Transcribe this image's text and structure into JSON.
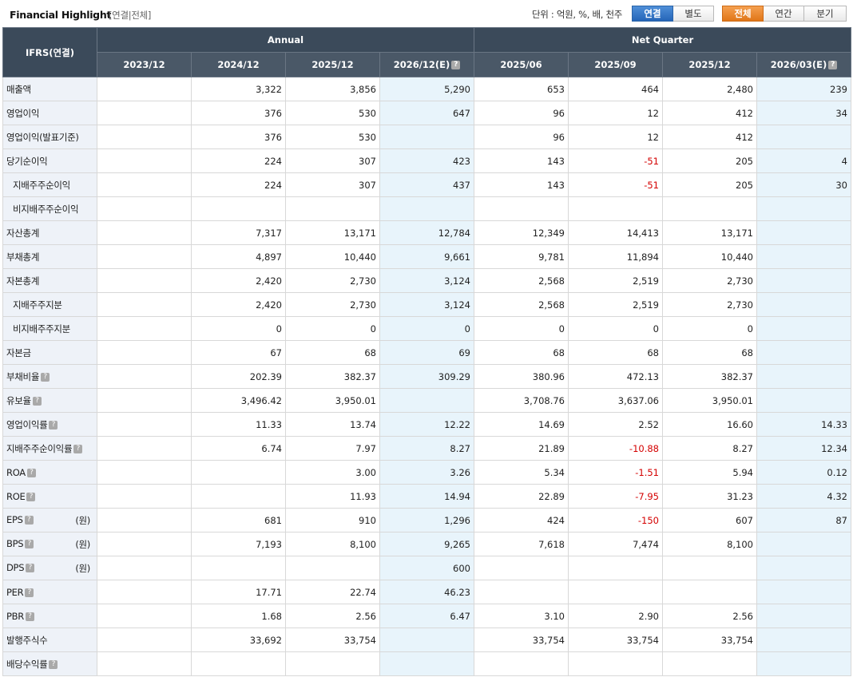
{
  "header": {
    "title": "Financial Highlight",
    "subtitle": "[연결|전체]",
    "unit_label": "단위 : 억원, %, 배, 천주",
    "scope_buttons": [
      "연결",
      "별도"
    ],
    "period_buttons": [
      "전체",
      "연간",
      "분기"
    ]
  },
  "table": {
    "corner": "IFRS(연결)",
    "groups": [
      "Annual",
      "Net Quarter"
    ],
    "periods": [
      "2023/12",
      "2024/12",
      "2025/12",
      "2026/12(E)",
      "2025/06",
      "2025/09",
      "2025/12",
      "2026/03(E)"
    ],
    "rows": [
      {
        "label": "매출액",
        "indent": false,
        "help": false,
        "unit": "",
        "values": [
          "",
          "3,322",
          "3,856",
          "5,290",
          "653",
          "464",
          "2,480",
          "239"
        ]
      },
      {
        "label": "영업이익",
        "indent": false,
        "help": false,
        "unit": "",
        "values": [
          "",
          "376",
          "530",
          "647",
          "96",
          "12",
          "412",
          "34"
        ]
      },
      {
        "label": "영업이익(발표기준)",
        "indent": false,
        "help": false,
        "unit": "",
        "values": [
          "",
          "376",
          "530",
          "",
          "96",
          "12",
          "412",
          ""
        ]
      },
      {
        "label": "당기순이익",
        "indent": false,
        "help": false,
        "unit": "",
        "values": [
          "",
          "224",
          "307",
          "423",
          "143",
          "-51",
          "205",
          "4"
        ]
      },
      {
        "label": "지배주주순이익",
        "indent": true,
        "help": false,
        "unit": "",
        "values": [
          "",
          "224",
          "307",
          "437",
          "143",
          "-51",
          "205",
          "30"
        ]
      },
      {
        "label": "비지배주주순이익",
        "indent": true,
        "help": false,
        "unit": "",
        "values": [
          "",
          "",
          "",
          "",
          "",
          "",
          "",
          ""
        ]
      },
      {
        "label": "자산총계",
        "indent": false,
        "help": false,
        "unit": "",
        "values": [
          "",
          "7,317",
          "13,171",
          "12,784",
          "12,349",
          "14,413",
          "13,171",
          ""
        ]
      },
      {
        "label": "부채총계",
        "indent": false,
        "help": false,
        "unit": "",
        "values": [
          "",
          "4,897",
          "10,440",
          "9,661",
          "9,781",
          "11,894",
          "10,440",
          ""
        ]
      },
      {
        "label": "자본총계",
        "indent": false,
        "help": false,
        "unit": "",
        "values": [
          "",
          "2,420",
          "2,730",
          "3,124",
          "2,568",
          "2,519",
          "2,730",
          ""
        ]
      },
      {
        "label": "지배주주지분",
        "indent": true,
        "help": false,
        "unit": "",
        "values": [
          "",
          "2,420",
          "2,730",
          "3,124",
          "2,568",
          "2,519",
          "2,730",
          ""
        ]
      },
      {
        "label": "비지배주주지분",
        "indent": true,
        "help": false,
        "unit": "",
        "values": [
          "",
          "0",
          "0",
          "0",
          "0",
          "0",
          "0",
          ""
        ]
      },
      {
        "label": "자본금",
        "indent": false,
        "help": false,
        "unit": "",
        "values": [
          "",
          "67",
          "68",
          "69",
          "68",
          "68",
          "68",
          ""
        ]
      },
      {
        "label": "부채비율",
        "indent": false,
        "help": true,
        "unit": "",
        "values": [
          "",
          "202.39",
          "382.37",
          "309.29",
          "380.96",
          "472.13",
          "382.37",
          ""
        ]
      },
      {
        "label": "유보율",
        "indent": false,
        "help": true,
        "unit": "",
        "values": [
          "",
          "3,496.42",
          "3,950.01",
          "",
          "3,708.76",
          "3,637.06",
          "3,950.01",
          ""
        ]
      },
      {
        "label": "영업이익률",
        "indent": false,
        "help": true,
        "unit": "",
        "values": [
          "",
          "11.33",
          "13.74",
          "12.22",
          "14.69",
          "2.52",
          "16.60",
          "14.33"
        ]
      },
      {
        "label": "지배주주순이익률",
        "indent": false,
        "help": true,
        "unit": "",
        "values": [
          "",
          "6.74",
          "7.97",
          "8.27",
          "21.89",
          "-10.88",
          "8.27",
          "12.34"
        ]
      },
      {
        "label": "ROA",
        "indent": false,
        "help": true,
        "unit": "",
        "values": [
          "",
          "",
          "3.00",
          "3.26",
          "5.34",
          "-1.51",
          "5.94",
          "0.12"
        ]
      },
      {
        "label": "ROE",
        "indent": false,
        "help": true,
        "unit": "",
        "values": [
          "",
          "",
          "11.93",
          "14.94",
          "22.89",
          "-7.95",
          "31.23",
          "4.32"
        ]
      },
      {
        "label": "EPS",
        "indent": false,
        "help": true,
        "unit": "(원)",
        "values": [
          "",
          "681",
          "910",
          "1,296",
          "424",
          "-150",
          "607",
          "87"
        ]
      },
      {
        "label": "BPS",
        "indent": false,
        "help": true,
        "unit": "(원)",
        "values": [
          "",
          "7,193",
          "8,100",
          "9,265",
          "7,618",
          "7,474",
          "8,100",
          ""
        ]
      },
      {
        "label": "DPS",
        "indent": false,
        "help": true,
        "unit": "(원)",
        "values": [
          "",
          "",
          "",
          "600",
          "",
          "",
          "",
          ""
        ]
      },
      {
        "label": "PER",
        "indent": false,
        "help": true,
        "unit": "",
        "values": [
          "",
          "17.71",
          "22.74",
          "46.23",
          "",
          "",
          "",
          ""
        ]
      },
      {
        "label": "PBR",
        "indent": false,
        "help": true,
        "unit": "",
        "values": [
          "",
          "1.68",
          "2.56",
          "6.47",
          "3.10",
          "2.90",
          "2.56",
          ""
        ]
      },
      {
        "label": "발행주식수",
        "indent": false,
        "help": false,
        "unit": "",
        "values": [
          "",
          "33,692",
          "33,754",
          "",
          "33,754",
          "33,754",
          "33,754",
          ""
        ]
      },
      {
        "label": "배당수익률",
        "indent": false,
        "help": true,
        "unit": "",
        "values": [
          "",
          "",
          "",
          "",
          "",
          "",
          "",
          ""
        ]
      }
    ]
  }
}
